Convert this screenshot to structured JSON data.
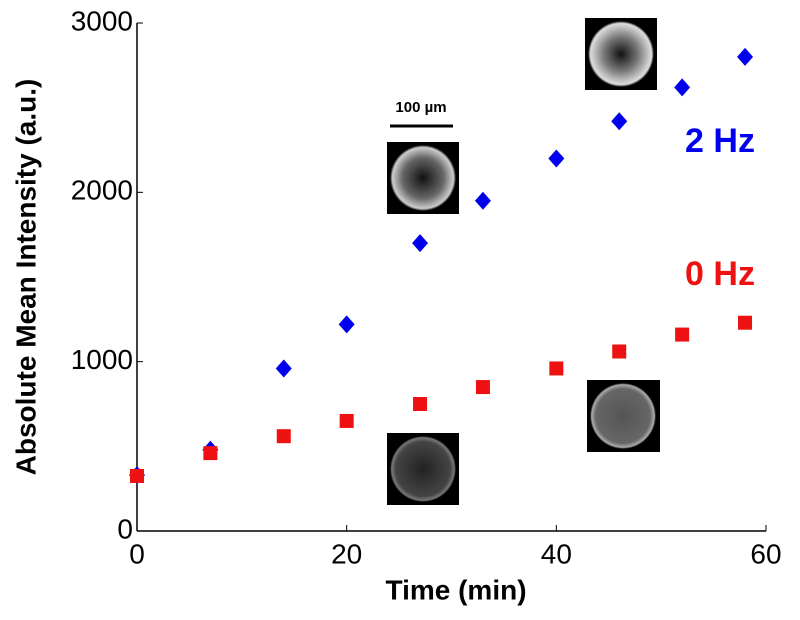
{
  "chart_data": {
    "type": "scatter",
    "xlabel": "Time (min)",
    "ylabel": "Absolute Mean Intensity (a.u.)",
    "x": [
      0,
      7,
      14,
      20,
      27,
      33,
      40,
      46,
      52,
      58
    ],
    "series": [
      {
        "name": "2 Hz",
        "color": "#0000ee",
        "marker": "diamond",
        "values": [
          330,
          480,
          960,
          1220,
          1700,
          1950,
          2200,
          2420,
          2620,
          2800
        ]
      },
      {
        "name": "0 Hz",
        "color": "#ee1111",
        "marker": "square",
        "values": [
          325,
          460,
          560,
          650,
          750,
          850,
          960,
          1060,
          1160,
          1230
        ]
      }
    ],
    "annotations": [
      "100 µm"
    ],
    "xlim": [
      0,
      60
    ],
    "xticks": [
      0,
      20,
      40,
      60
    ],
    "ylim": [
      0,
      3000
    ],
    "yticks": [
      0,
      1000,
      2000,
      3000
    ]
  }
}
